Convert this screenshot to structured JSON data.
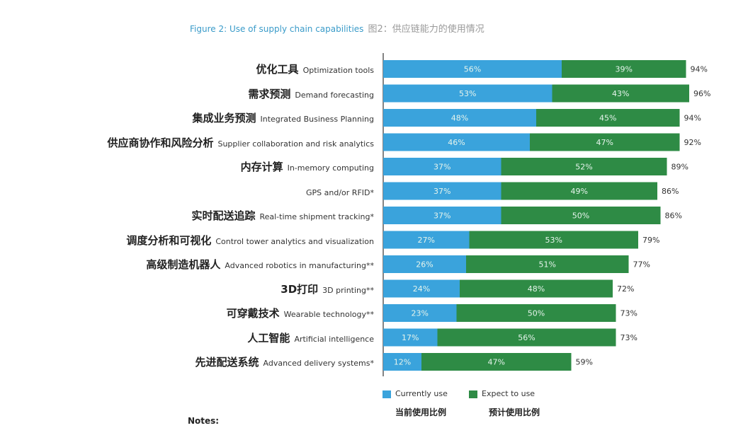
{
  "title": "Figure 2: Use of supply chain capabilities",
  "title_zh": "图2：供应链能力的使用情况",
  "chart_data": {
    "type": "bar",
    "orientation": "horizontal",
    "stacked": true,
    "categories": [
      {
        "zh": "优化工具",
        "en": "Optimization tools"
      },
      {
        "zh": "需求预测",
        "en": "Demand forecasting"
      },
      {
        "zh": "集成业务预测",
        "en": "Integrated Business Planning"
      },
      {
        "zh": "供应商协作和风险分析",
        "en": "Supplier collaboration and risk analytics"
      },
      {
        "zh": "内存计算",
        "en": "In-memory computing"
      },
      {
        "zh": "",
        "en": "GPS and/or RFID*"
      },
      {
        "zh": "实时配送追踪",
        "en": "Real-time shipment tracking*"
      },
      {
        "zh": "调度分析和可视化",
        "en": "Control tower analytics and visualization"
      },
      {
        "zh": "高级制造机器人",
        "en": "Advanced robotics in manufacturing**"
      },
      {
        "zh": "3D打印",
        "en": "3D printing**"
      },
      {
        "zh": "可穿戴技术",
        "en": "Wearable technology**"
      },
      {
        "zh": "人工智能",
        "en": "Artificial intelligence"
      },
      {
        "zh": "先进配送系统",
        "en": "Advanced delivery systems*"
      }
    ],
    "series": [
      {
        "name": "Currently use",
        "name_zh": "当前使用比例",
        "color": "#3aa3dc",
        "values": [
          56,
          53,
          48,
          46,
          37,
          37,
          37,
          27,
          26,
          24,
          23,
          17,
          12
        ]
      },
      {
        "name": "Expect to use",
        "name_zh": "预计使用比例",
        "color": "#2e8b45",
        "values": [
          39,
          43,
          45,
          47,
          52,
          49,
          50,
          53,
          51,
          48,
          50,
          56,
          47
        ]
      }
    ],
    "totals": [
      94,
      96,
      94,
      92,
      89,
      86,
      86,
      79,
      77,
      72,
      73,
      73,
      59
    ],
    "value_suffix": "%",
    "xlim": [
      0,
      100
    ],
    "legend_position": "bottom"
  },
  "notes_label": "Notes:"
}
